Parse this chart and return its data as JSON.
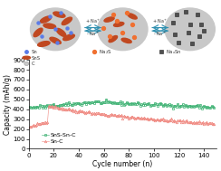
{
  "xlabel": "Cycle number (n)",
  "ylabel": "Capacity (mAh/g)",
  "ylim": [
    0,
    900
  ],
  "xlim": [
    0,
    150
  ],
  "yticks": [
    0,
    100,
    200,
    300,
    400,
    500,
    600,
    700,
    800,
    900
  ],
  "xticks": [
    0,
    20,
    40,
    60,
    80,
    100,
    120,
    140
  ],
  "sn_c_color": "#f08880",
  "sns_sn_c_color": "#3ab070",
  "background_color": "#ffffff",
  "legend_labels": [
    "Sn-C",
    "SnS-Sn-C"
  ],
  "circle_bg": "#c8c8c8",
  "sn_color": "#5b7be8",
  "sns_color": "#c04820",
  "na2s_color": "#f07030",
  "naxsn_color": "#404040",
  "arrow_color": "#3090b0"
}
